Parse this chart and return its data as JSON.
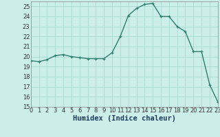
{
  "x": [
    0,
    1,
    2,
    3,
    4,
    5,
    6,
    7,
    8,
    9,
    10,
    11,
    12,
    13,
    14,
    15,
    16,
    17,
    18,
    19,
    20,
    21,
    22,
    23
  ],
  "y": [
    19.6,
    19.5,
    19.7,
    20.1,
    20.2,
    20.0,
    19.9,
    19.8,
    19.8,
    19.8,
    20.4,
    22.0,
    24.1,
    24.8,
    25.2,
    25.3,
    24.0,
    24.0,
    23.0,
    22.5,
    20.5,
    20.5,
    17.2,
    15.5
  ],
  "line_color": "#2e7d6e",
  "marker": "+",
  "markersize": 3.5,
  "linewidth": 1.0,
  "bg_color": "#cceee8",
  "grid_color": "#aad8d2",
  "xlabel": "Humidex (Indice chaleur)",
  "xlabel_fontsize": 7.5,
  "tick_fontsize": 6,
  "ylim": [
    15,
    25.5
  ],
  "xlim": [
    0,
    23
  ],
  "yticks": [
    15,
    16,
    17,
    18,
    19,
    20,
    21,
    22,
    23,
    24,
    25
  ],
  "xticks": [
    0,
    1,
    2,
    3,
    4,
    5,
    6,
    7,
    8,
    9,
    10,
    11,
    12,
    13,
    14,
    15,
    16,
    17,
    18,
    19,
    20,
    21,
    22,
    23
  ]
}
